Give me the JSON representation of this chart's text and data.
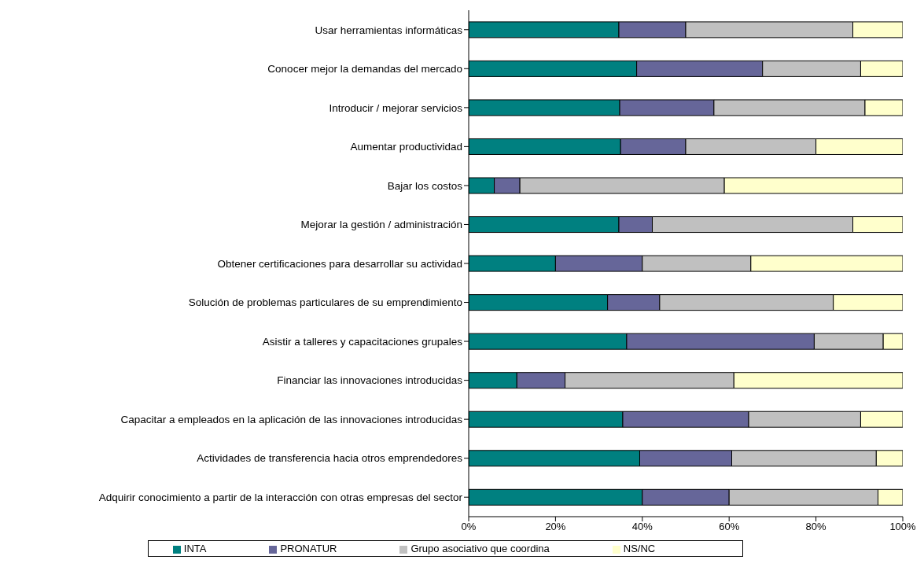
{
  "chart_data": {
    "type": "bar",
    "orientation": "horizontal",
    "stacked": true,
    "legend": "bottom",
    "categories": [
      "Usar herramientas informáticas",
      "Conocer mejor la demandas del mercado",
      "Introducir / mejorar servicios",
      "Aumentar productividad",
      "Bajar los costos",
      "Mejorar la gestión / administración",
      "Obtener certificaciones para desarrollar su actividad",
      "Solución de problemas particulares de su emprendimiento",
      "Asistir a talleres y capacitaciones grupales",
      "Financiar las innovaciones introducidas",
      "Capacitar a empleados en la aplicación de las innovaciones introducidas",
      "Actividades de transferencia hacia otros emprendedores",
      "Adquirir conocimiento a partir de la interacción con otras empresas del sector"
    ],
    "series": [
      {
        "name": "INTA",
        "color": "#008080",
        "values": [
          34.6,
          38.7,
          34.8,
          35,
          5.9,
          34.6,
          20,
          32,
          36.4,
          11.1,
          35.5,
          39.4,
          40
        ]
      },
      {
        "name": "PRONATUR",
        "color": "#666699",
        "values": [
          15.4,
          29,
          21.7,
          15,
          5.9,
          7.7,
          20,
          12,
          43.2,
          11.1,
          29,
          21.2,
          20
        ]
      },
      {
        "name": "Grupo asociativo que coordina",
        "color": "#c0c0c0",
        "values": [
          38.5,
          22.6,
          34.8,
          30,
          47.1,
          46.2,
          25,
          40,
          15.9,
          38.9,
          25.8,
          33.3,
          34.3
        ]
      },
      {
        "name": "NS/NC",
        "color": "#ffffcc",
        "values": [
          11.5,
          9.7,
          8.7,
          20,
          41.2,
          11.5,
          35,
          16,
          4.5,
          38.9,
          9.7,
          6.1,
          5.7
        ]
      }
    ],
    "xlim": [
      0,
      100
    ],
    "xticks": [
      {
        "value": 0,
        "label": "0%"
      },
      {
        "value": 20,
        "label": "20%"
      },
      {
        "value": 40,
        "label": "40%"
      },
      {
        "value": 60,
        "label": "60%"
      },
      {
        "value": 80,
        "label": "80%"
      },
      {
        "value": 100,
        "label": "100%"
      }
    ]
  }
}
